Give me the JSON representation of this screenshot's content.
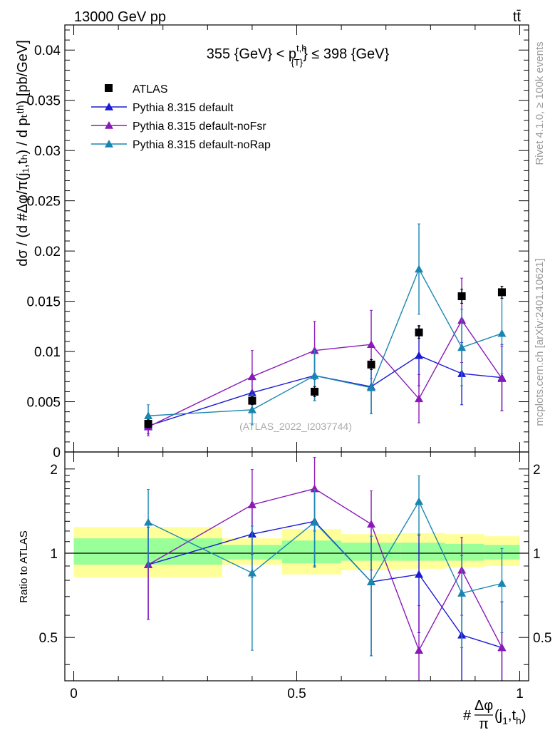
{
  "header": {
    "left": "13000 GeV pp",
    "right": "tt̄"
  },
  "side_labels": {
    "rivet": "Rivet 4.1.0, ≥ 100k events",
    "mcplots": "mcplots.cern.ch [arXiv:2401.10621]"
  },
  "watermark": "(ATLAS_2022_I2037744)",
  "chart_data": [
    {
      "type": "scatter",
      "title": "355 {GeV} < p_{T}^{t,h} ≤ 398 {GeV}",
      "title_parts": {
        "lhs": "355 {GeV} < p",
        "sub": "{T}",
        "sup": "t,h",
        "rhs": "} ≤ 398 {GeV}"
      },
      "ylabel": "dσ / (d #frac{Δφ}{π}(j_{1},t_{h}) / d p_{T}^{t,h}) [pb/GeV]",
      "ylabel_display": "dσ / (d #Δφ/π(j₁,tₕ) / d pₜᵗʰ) [pb/GeV]",
      "ylim": [
        0,
        0.0425
      ],
      "xlim": [
        -0.02,
        1.02
      ],
      "yticks": [
        0,
        0.005,
        0.01,
        0.015,
        0.02,
        0.025,
        0.03,
        0.035,
        0.04
      ],
      "ytick_labels": [
        "0",
        "0.005",
        "0.01",
        "0.015",
        "0.02",
        "0.025",
        "0.03",
        "0.035",
        "0.04"
      ],
      "legend_position": "top-left",
      "series": [
        {
          "name": "ATLAS",
          "color": "#000000",
          "marker": "square",
          "x": [
            0.167,
            0.4,
            0.54,
            0.667,
            0.774,
            0.87,
            0.96
          ],
          "y": [
            0.0028,
            0.0051,
            0.006,
            0.0087,
            0.0119,
            0.0155,
            0.0159
          ],
          "yerr": [
            0.0004,
            0.0004,
            0.0005,
            0.0005,
            0.0006,
            0.0007,
            0.0006
          ]
        },
        {
          "name": "Pythia 8.315 default",
          "color": "#1a1ad4",
          "marker": "triangle",
          "x": [
            0.167,
            0.4,
            0.54,
            0.667,
            0.774,
            0.87,
            0.96
          ],
          "y": [
            0.0026,
            0.0059,
            0.0076,
            0.0065,
            0.0096,
            0.0078,
            0.0074
          ],
          "yerr": [
            0.0008,
            0.0016,
            0.0025,
            0.0027,
            0.003,
            0.0031,
            0.0033
          ]
        },
        {
          "name": "Pythia 8.315 default-noFsr",
          "color": "#8a1ab8",
          "marker": "triangle",
          "x": [
            0.167,
            0.4,
            0.54,
            0.667,
            0.774,
            0.87,
            0.96
          ],
          "y": [
            0.0025,
            0.0075,
            0.0101,
            0.0107,
            0.0053,
            0.0131,
            0.0073
          ],
          "yerr": [
            0.0009,
            0.0026,
            0.0029,
            0.0034,
            0.0024,
            0.0042,
            0.0032
          ]
        },
        {
          "name": "Pythia 8.315 default-noRap",
          "color": "#1a86b0",
          "marker": "triangle",
          "x": [
            0.167,
            0.4,
            0.54,
            0.667,
            0.774,
            0.87,
            0.96
          ],
          "y": [
            0.0036,
            0.0042,
            0.0076,
            0.0064,
            0.0182,
            0.0104,
            0.0118
          ],
          "yerr": [
            0.0011,
            0.0015,
            0.0025,
            0.0026,
            0.0045,
            0.0038,
            0.004
          ]
        }
      ]
    },
    {
      "type": "scatter",
      "title": "",
      "ylabel": "Ratio to ATLAS",
      "xlabel": "#Δφ/π(j_{1},t_{h})",
      "xlabel_parts": {
        "hash": "#",
        "num": "Δφ",
        "den": "π",
        "args": "(j",
        "sub1": "1",
        "mid": ",t",
        "sub2": "h",
        "close": ")"
      },
      "ylim": [
        0.35,
        2.3
      ],
      "xlim": [
        -0.02,
        1.02
      ],
      "yticks": [
        0.5,
        1,
        2
      ],
      "ytick_labels": [
        "0.5",
        "1",
        "2"
      ],
      "xticks": [
        0,
        0.5,
        1
      ],
      "xtick_labels": [
        "0",
        "0.5",
        "1"
      ],
      "reference_line": 1,
      "uncertainty_bands": {
        "x_edges": [
          0,
          0.333,
          0.467,
          0.6,
          0.733,
          0.833,
          0.92,
          1.0
        ],
        "yellow_low": [
          0.82,
          0.91,
          0.84,
          0.87,
          0.88,
          0.89,
          0.9
        ],
        "yellow_high": [
          1.24,
          1.13,
          1.22,
          1.17,
          1.18,
          1.17,
          1.15
        ],
        "green_low": [
          0.91,
          0.95,
          0.92,
          0.94,
          0.94,
          0.94,
          0.95
        ],
        "green_high": [
          1.13,
          1.07,
          1.11,
          1.09,
          1.09,
          1.08,
          1.07
        ],
        "yellow_color": "#ffff99",
        "green_color": "#99ff99"
      },
      "series": [
        {
          "name": "Pythia 8.315 default",
          "color": "#1a1ad4",
          "x": [
            0.167,
            0.4,
            0.54,
            0.667,
            0.774,
            0.87,
            0.96
          ],
          "y": [
            0.91,
            1.17,
            1.3,
            0.79,
            0.84,
            0.51,
            0.46
          ],
          "yerr": [
            0.33,
            0.35,
            0.4,
            0.36,
            0.32,
            0.2,
            0.21
          ]
        },
        {
          "name": "Pythia 8.315 default-noFsr",
          "color": "#8a1ab8",
          "x": [
            0.167,
            0.4,
            0.54,
            0.667,
            0.774,
            0.87,
            0.96
          ],
          "y": [
            0.91,
            1.49,
            1.7,
            1.27,
            0.45,
            0.87,
            0.46
          ],
          "yerr": [
            0.33,
            0.5,
            0.5,
            0.4,
            0.2,
            0.27,
            0.21
          ]
        },
        {
          "name": "Pythia 8.315 default-noRap",
          "color": "#1a86b0",
          "x": [
            0.167,
            0.4,
            0.54,
            0.667,
            0.774,
            0.87,
            0.96
          ],
          "y": [
            1.29,
            0.85,
            1.29,
            0.79,
            1.53,
            0.72,
            0.78
          ],
          "yerr": [
            0.4,
            0.4,
            0.4,
            0.36,
            0.36,
            0.26,
            0.26
          ]
        }
      ]
    }
  ]
}
